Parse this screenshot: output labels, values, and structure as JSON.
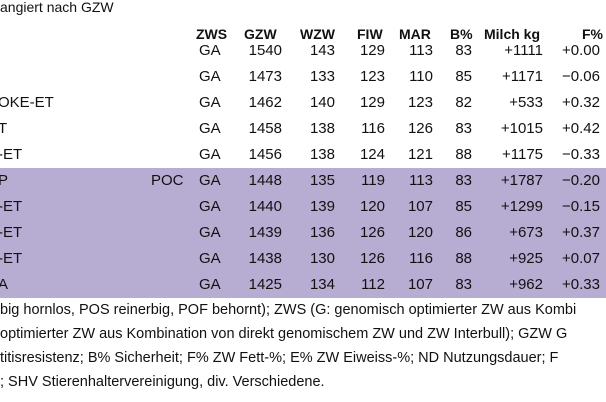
{
  "title": "angiert nach GZW",
  "headers": [
    "ZWS",
    "GZW",
    "WZW",
    "FIW",
    "MAR",
    "B%",
    "Milch kg",
    "F%"
  ],
  "rows": [
    {
      "name": "",
      "poc": "",
      "zws": "GA",
      "gzw": "1540",
      "wzw": "143",
      "fiw": "129",
      "mar": "113",
      "b": "83",
      "milch": "+1111",
      "f": "+0.00",
      "highlight": false
    },
    {
      "name": "",
      "poc": "",
      "zws": "GA",
      "gzw": "1473",
      "wzw": "133",
      "fiw": "123",
      "mar": "110",
      "b": "85",
      "milch": "+1171",
      "f": "−0.06",
      "highlight": false
    },
    {
      "name": "OKE-ET",
      "poc": "",
      "zws": "GA",
      "gzw": "1462",
      "wzw": "140",
      "fiw": "129",
      "mar": "123",
      "b": "82",
      "milch": "+533",
      "f": "+0.32",
      "highlight": false
    },
    {
      "name": "T",
      "poc": "",
      "zws": "GA",
      "gzw": "1458",
      "wzw": "138",
      "fiw": "116",
      "mar": "126",
      "b": "83",
      "milch": "+1015",
      "f": "+0.42",
      "highlight": false
    },
    {
      "name": "-ET",
      "poc": "",
      "zws": "GA",
      "gzw": "1456",
      "wzw": "138",
      "fiw": "124",
      "mar": "121",
      "b": "88",
      "milch": "+1175",
      "f": "−0.33",
      "highlight": false
    },
    {
      "name": "P",
      "poc": "POC",
      "zws": "GA",
      "gzw": "1448",
      "wzw": "135",
      "fiw": "119",
      "mar": "113",
      "b": "83",
      "milch": "+1787",
      "f": "−0.20",
      "highlight": true
    },
    {
      "name": "-ET",
      "poc": "",
      "zws": "GA",
      "gzw": "1440",
      "wzw": "139",
      "fiw": "120",
      "mar": "107",
      "b": "85",
      "milch": "+1299",
      "f": "−0.15",
      "highlight": true
    },
    {
      "name": "-ET",
      "poc": "",
      "zws": "GA",
      "gzw": "1439",
      "wzw": "136",
      "fiw": "126",
      "mar": "120",
      "b": "86",
      "milch": "+673",
      "f": "+0.37",
      "highlight": true
    },
    {
      "name": "-ET",
      "poc": "",
      "zws": "GA",
      "gzw": "1438",
      "wzw": "130",
      "fiw": "126",
      "mar": "116",
      "b": "88",
      "milch": "+925",
      "f": "+0.07",
      "highlight": true
    },
    {
      "name": "A",
      "poc": "",
      "zws": "GA",
      "gzw": "1425",
      "wzw": "134",
      "fiw": "112",
      "mar": "107",
      "b": "83",
      "milch": "+962",
      "f": "+0.33",
      "highlight": true
    }
  ],
  "footnotes": [
    "big hornlos, POS reinerbig, POF behornt); ZWS (G: genomisch optimierter ZW aus Kombi",
    "optimierter ZW aus Kombination von direkt genomischem ZW und ZW Interbull); GZW G",
    "titisresistenz; B% Sicherheit; F% ZW Fett-%; E% ZW Eiweiss-%; ND Nutzungsdauer; F",
    "; SHV Stierenhaltervereinigung, div. Verschiedene."
  ]
}
